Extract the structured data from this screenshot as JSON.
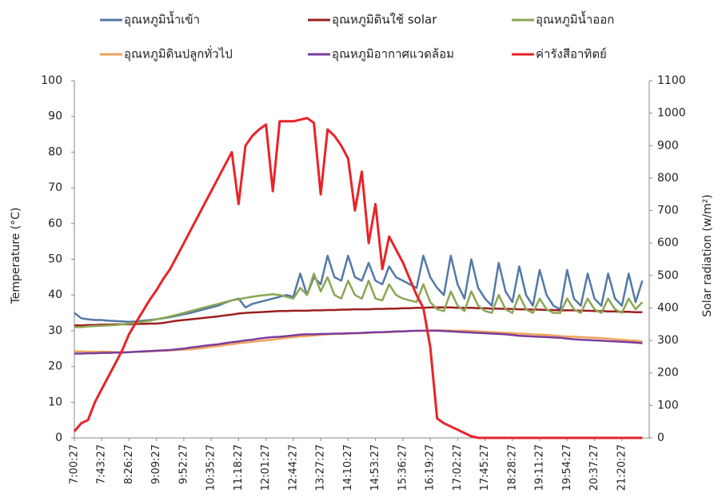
{
  "chart_data": {
    "type": "line",
    "ylabel": "Temperature (°C)",
    "y2label": "Solar radiation (w/m²)",
    "ylim": [
      0,
      100
    ],
    "yticks": [
      0,
      10,
      20,
      30,
      40,
      50,
      60,
      70,
      80,
      90,
      100
    ],
    "y2lim": [
      0,
      1100
    ],
    "y2ticks": [
      0,
      100,
      200,
      300,
      400,
      500,
      600,
      700,
      800,
      900,
      1000,
      1100
    ],
    "grid": false,
    "legend": "top",
    "categories": [
      "7:00:27",
      null,
      null,
      null,
      "7:43:27",
      null,
      null,
      null,
      "8:26:27",
      null,
      null,
      null,
      "9:09:27",
      null,
      null,
      null,
      "9:52:27",
      null,
      null,
      null,
      "10:35:27",
      null,
      null,
      null,
      "11:18:27",
      null,
      null,
      null,
      "12:01:27",
      null,
      null,
      null,
      "12:44:27",
      null,
      null,
      null,
      "13:27:27",
      null,
      null,
      null,
      "14:10:27",
      null,
      null,
      null,
      "14:53:27",
      null,
      null,
      null,
      "15:36:27",
      null,
      null,
      null,
      "16:19:27",
      null,
      null,
      null,
      "17:02:27",
      null,
      null,
      null,
      "17:45:27",
      null,
      null,
      null,
      "18:28:27",
      null,
      null,
      null,
      "19:11:27",
      null,
      null,
      null,
      "19:54:27",
      null,
      null,
      null,
      "20:37:27",
      null,
      null,
      null,
      "21:20:27",
      null,
      null,
      null
    ],
    "series": [
      {
        "name": "อุณหภูมิน้ำเข้า",
        "color": "#5379a6",
        "values": [
          35,
          33.5,
          33.2,
          33,
          33,
          32.8,
          32.7,
          32.6,
          32.5,
          32.6,
          32.8,
          33,
          33.2,
          33.5,
          33.8,
          34.2,
          34.6,
          35,
          35.5,
          36,
          36.5,
          37,
          37.8,
          38.5,
          39,
          36.5,
          37.5,
          38,
          38.5,
          39,
          39.5,
          40,
          39.5,
          46,
          40,
          45,
          43,
          51,
          45,
          44,
          51,
          45,
          44,
          49,
          44,
          43,
          48,
          45,
          44,
          43,
          42,
          51,
          45,
          42,
          40,
          51,
          43,
          39,
          50,
          42,
          39,
          37,
          49,
          41,
          38,
          48,
          40,
          37,
          47,
          40,
          37,
          36,
          47,
          39,
          37,
          46,
          39,
          37,
          46,
          39,
          37,
          46,
          38,
          44
        ]
      },
      {
        "name": "อุณหภูมิดินใช้ solar",
        "color": "#9c1f1f",
        "values": [
          31.5,
          31.5,
          31.6,
          31.6,
          31.7,
          31.7,
          31.8,
          31.8,
          31.8,
          31.9,
          31.9,
          32,
          32,
          32.2,
          32.5,
          32.8,
          33,
          33.2,
          33.4,
          33.6,
          33.8,
          34,
          34.3,
          34.5,
          34.8,
          35,
          35.1,
          35.2,
          35.3,
          35.4,
          35.5,
          35.5,
          35.6,
          35.6,
          35.6,
          35.7,
          35.7,
          35.8,
          35.8,
          35.9,
          35.9,
          36,
          36,
          36,
          36.1,
          36.1,
          36.2,
          36.2,
          36.3,
          36.3,
          36.4,
          36.4,
          36.5,
          36.5,
          36.5,
          36.5,
          36.4,
          36.4,
          36.4,
          36.3,
          36.3,
          36.2,
          36.2,
          36.1,
          36.1,
          36,
          36,
          35.9,
          35.9,
          35.8,
          35.8,
          35.7,
          35.7,
          35.7,
          35.6,
          35.6,
          35.5,
          35.5,
          35.4,
          35.4,
          35.3,
          35.3,
          35.2,
          35.2
        ]
      },
      {
        "name": "อุณหภูมิน้ำออก",
        "color": "#8ba653",
        "values": [
          31,
          31,
          31.2,
          31.3,
          31.4,
          31.5,
          31.6,
          31.8,
          32,
          32.2,
          32.5,
          32.8,
          33.2,
          33.6,
          34,
          34.5,
          35,
          35.5,
          36,
          36.5,
          37,
          37.5,
          38,
          38.5,
          38.8,
          39.2,
          39.5,
          39.8,
          40,
          40.2,
          40,
          39.5,
          39,
          42,
          40,
          46,
          41,
          45,
          40,
          39,
          44,
          40,
          39,
          44,
          39,
          38.5,
          43,
          40,
          39,
          38.5,
          38,
          43,
          38,
          36,
          35.5,
          41,
          37,
          35.5,
          41,
          37,
          35.5,
          35,
          40,
          36,
          35,
          40,
          36,
          35,
          39,
          36,
          35,
          35,
          39,
          36,
          35,
          39,
          36,
          35,
          39,
          36,
          35,
          39,
          36,
          38
        ]
      },
      {
        "name": "อุณหภูมิดินปลูกทั่วไป",
        "color": "#f0a35a",
        "values": [
          24.2,
          24.2,
          24.1,
          24.1,
          24.1,
          24.1,
          24,
          24,
          24,
          24.1,
          24.1,
          24.2,
          24.3,
          24.4,
          24.5,
          24.6,
          24.7,
          24.8,
          25,
          25.2,
          25.5,
          25.7,
          26,
          26.2,
          26.5,
          26.7,
          26.9,
          27.1,
          27.3,
          27.5,
          27.8,
          28,
          28.2,
          28.4,
          28.5,
          28.7,
          28.8,
          29,
          29.1,
          29.1,
          29.2,
          29.3,
          29.3,
          29.4,
          29.5,
          29.6,
          29.6,
          29.7,
          29.8,
          29.9,
          29.9,
          30,
          30.1,
          30.1,
          30.1,
          30,
          30,
          30,
          29.9,
          29.8,
          29.7,
          29.6,
          29.5,
          29.4,
          29.3,
          29.2,
          29.1,
          29,
          28.9,
          28.8,
          28.7,
          28.5,
          28.4,
          28.3,
          28.2,
          28.1,
          28,
          27.9,
          27.8,
          27.6,
          27.5,
          27.3,
          27.2,
          27
        ]
      },
      {
        "name": "อุณหภูมิอากาศแวดล้อม",
        "color": "#7b3c9c",
        "values": [
          23.6,
          23.6,
          23.7,
          23.7,
          23.8,
          23.8,
          23.9,
          23.9,
          24,
          24.1,
          24.2,
          24.3,
          24.4,
          24.5,
          24.6,
          24.8,
          25,
          25.3,
          25.5,
          25.8,
          26,
          26.2,
          26.5,
          26.8,
          27,
          27.3,
          27.5,
          27.8,
          28,
          28.2,
          28.3,
          28.5,
          28.7,
          28.9,
          29,
          29,
          29.1,
          29.1,
          29.2,
          29.2,
          29.3,
          29.3,
          29.4,
          29.5,
          29.6,
          29.6,
          29.7,
          29.8,
          29.8,
          29.9,
          30,
          30,
          30,
          30,
          29.9,
          29.8,
          29.7,
          29.6,
          29.5,
          29.4,
          29.3,
          29.2,
          29.1,
          29,
          28.8,
          28.6,
          28.5,
          28.4,
          28.3,
          28.2,
          28.1,
          28,
          27.8,
          27.6,
          27.5,
          27.4,
          27.3,
          27.2,
          27.1,
          27,
          26.9,
          26.8,
          26.7,
          26.5
        ]
      },
      {
        "name": "ค่ารังสีอาทิตย์",
        "color": "#e8232a",
        "axis": "y2",
        "values": [
          20,
          45,
          55,
          110,
          150,
          190,
          230,
          270,
          320,
          355,
          390,
          425,
          455,
          490,
          520,
          560,
          600,
          640,
          680,
          720,
          760,
          800,
          840,
          880,
          720,
          900,
          930,
          950,
          965,
          760,
          975,
          975,
          975,
          980,
          985,
          970,
          750,
          950,
          930,
          900,
          860,
          700,
          820,
          600,
          720,
          520,
          620,
          580,
          540,
          490,
          440,
          400,
          280,
          60,
          45,
          35,
          25,
          15,
          5,
          0,
          0,
          0,
          0,
          0,
          0,
          0,
          0,
          0,
          0,
          0,
          0,
          0,
          0,
          0,
          0,
          0,
          0,
          0,
          0,
          0,
          0,
          0,
          0,
          0
        ]
      }
    ]
  }
}
